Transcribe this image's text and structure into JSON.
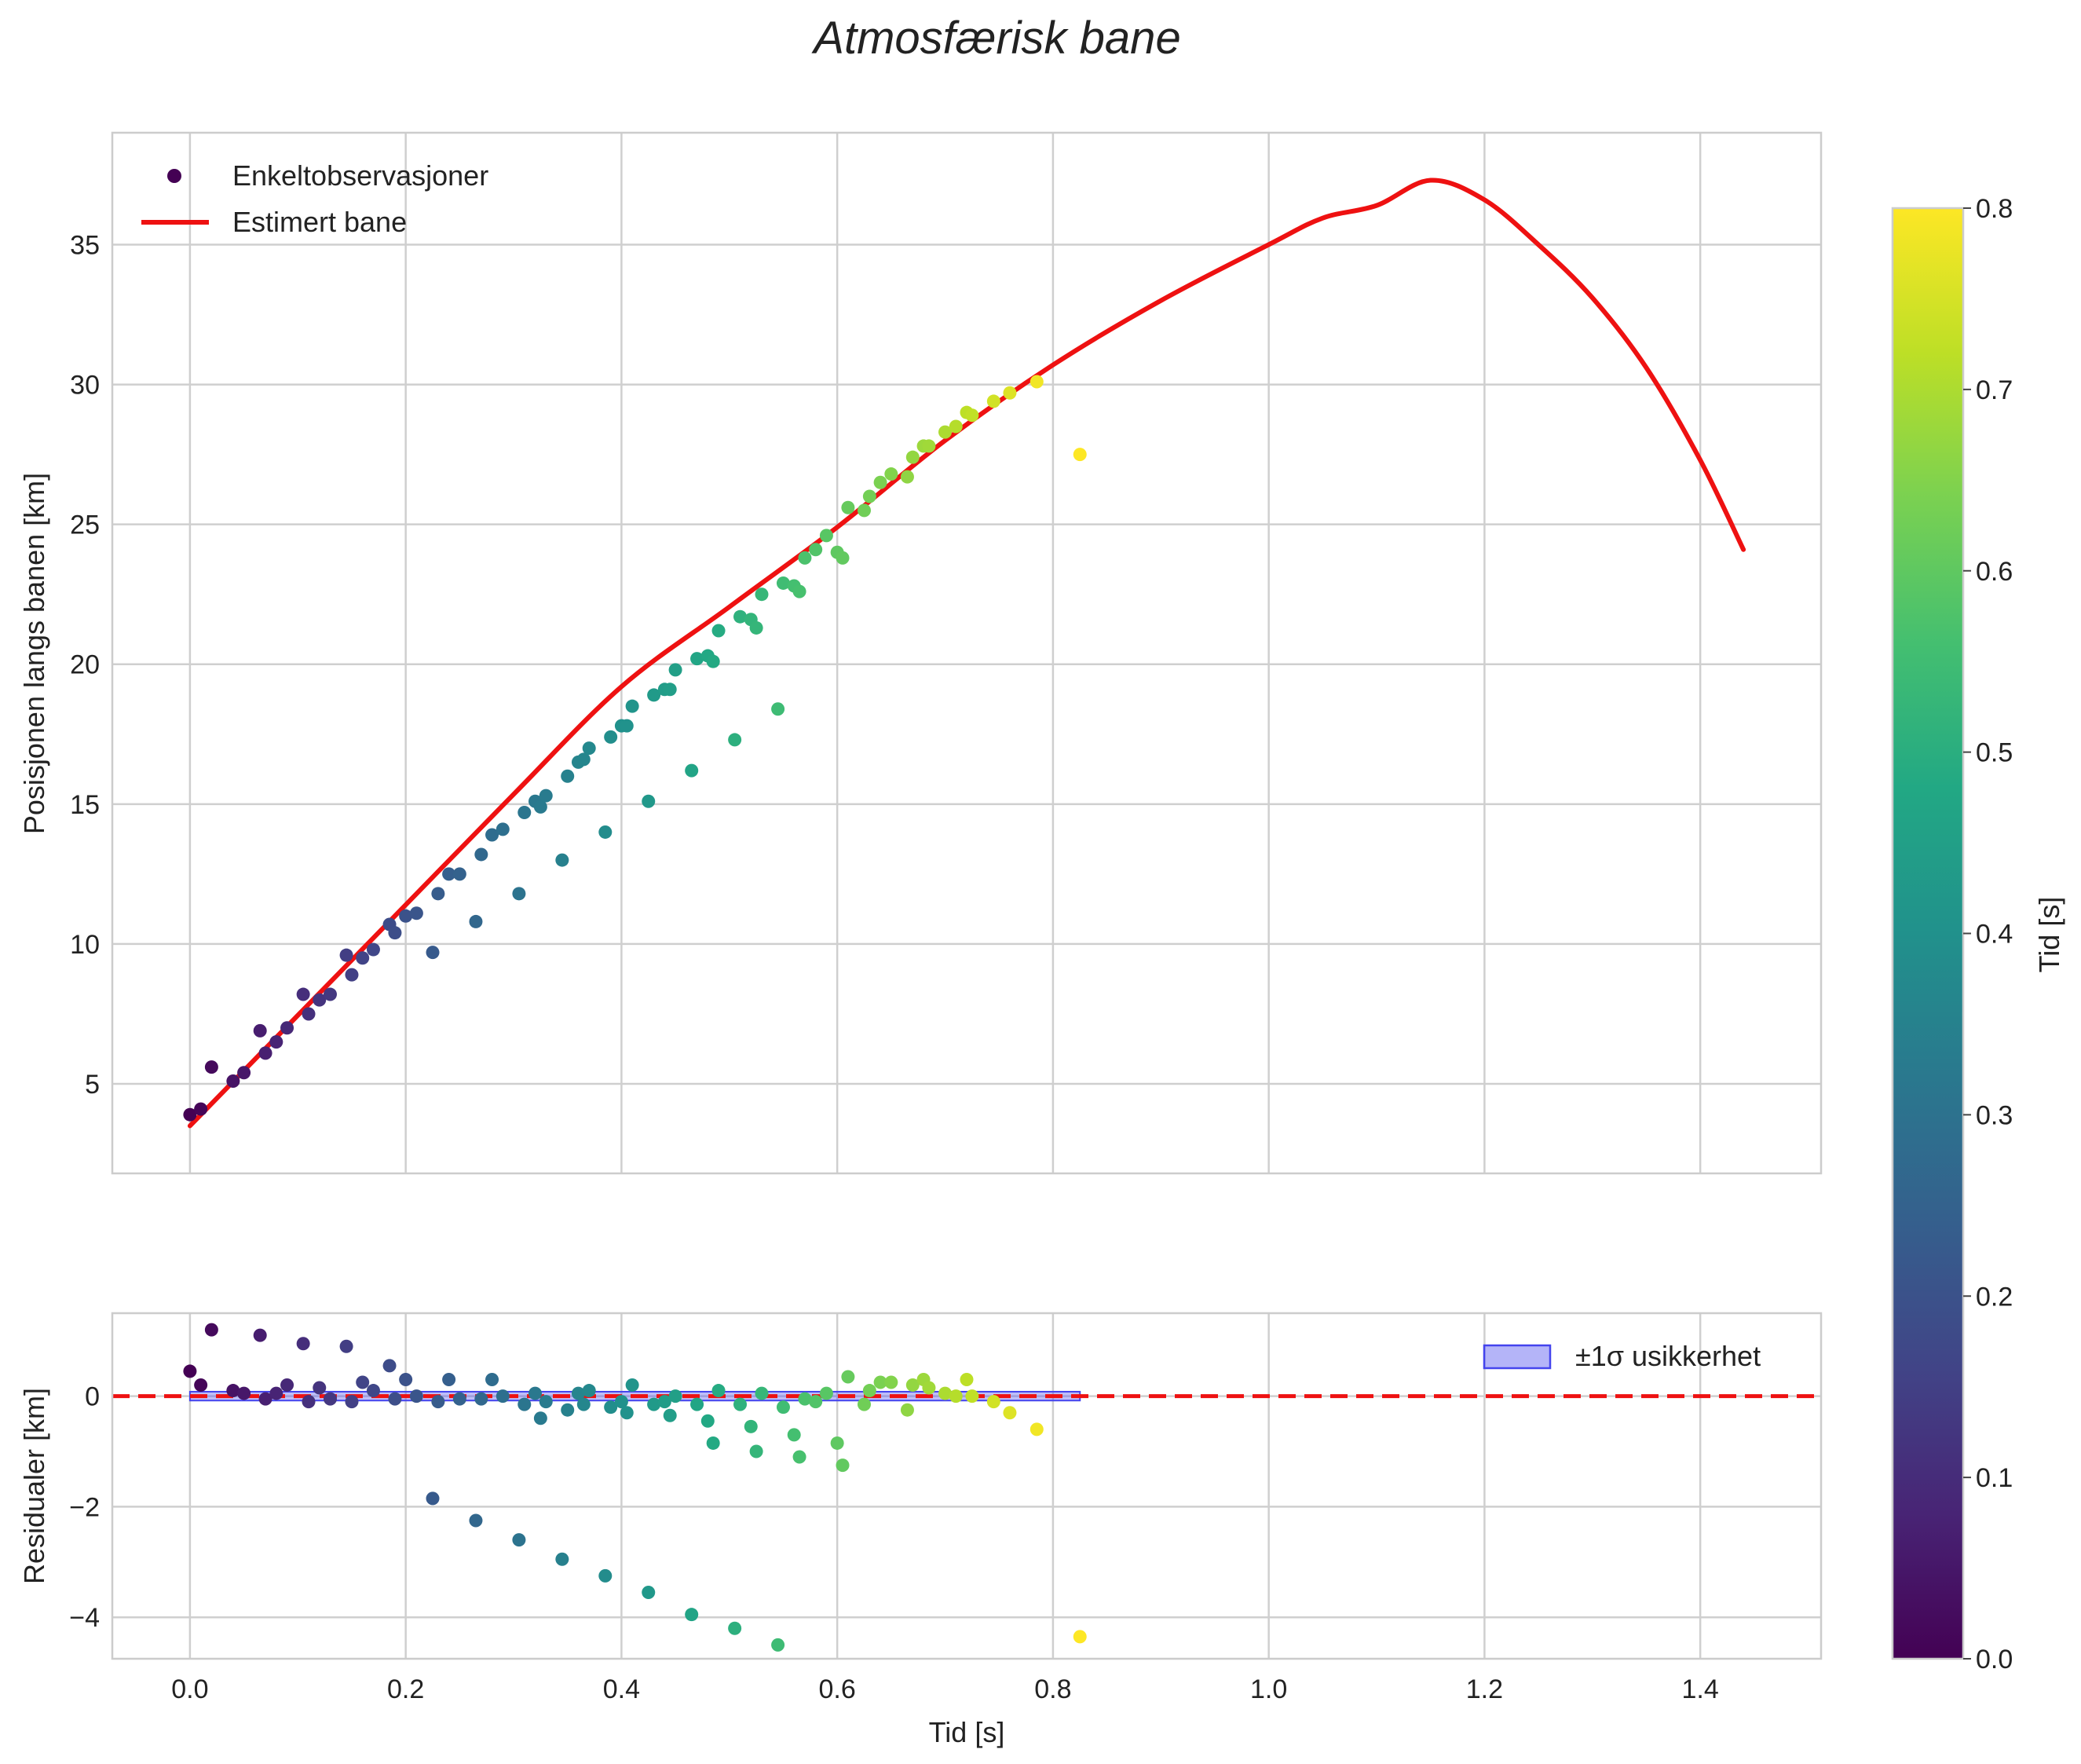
{
  "chart_data": {
    "type": "scatter",
    "title": "Atmosfærisk bane",
    "xlabel": "Tid [s]",
    "xlim": [
      -0.072,
      1.512
    ],
    "xticks": [
      0.0,
      0.2,
      0.4,
      0.6,
      0.8,
      1.0,
      1.2,
      1.4
    ],
    "xtick_labels": [
      "0.0",
      "0.2",
      "0.4",
      "0.6",
      "0.8",
      "1.0",
      "1.2",
      "1.4"
    ],
    "grid": true,
    "colorbar": {
      "label": "Tid [s]",
      "colormap": "viridis",
      "range": [
        0.0,
        0.8
      ],
      "ticks": [
        0.0,
        0.1,
        0.2,
        0.3,
        0.4,
        0.5,
        0.6,
        0.7,
        0.8
      ],
      "tick_labels": [
        "0.0",
        "0.1",
        "0.2",
        "0.3",
        "0.4",
        "0.5",
        "0.6",
        "0.7",
        "0.8"
      ]
    },
    "top_panel": {
      "ylabel": "Posisjonen langs banen [km]",
      "ylim": [
        1.8,
        39.0
      ],
      "yticks": [
        5,
        10,
        15,
        20,
        25,
        30,
        35
      ],
      "ytick_labels": [
        "5",
        "10",
        "15",
        "20",
        "25",
        "30",
        "35"
      ],
      "legend_position": "upper-left",
      "observations": {
        "name": "Enkeltobservasjoner",
        "points": [
          [
            0.0,
            3.9
          ],
          [
            0.01,
            4.1
          ],
          [
            0.02,
            5.6
          ],
          [
            0.04,
            5.1
          ],
          [
            0.05,
            5.4
          ],
          [
            0.065,
            6.9
          ],
          [
            0.07,
            6.1
          ],
          [
            0.08,
            6.5
          ],
          [
            0.09,
            7.0
          ],
          [
            0.105,
            8.2
          ],
          [
            0.11,
            7.5
          ],
          [
            0.12,
            8.0
          ],
          [
            0.13,
            8.2
          ],
          [
            0.145,
            9.6
          ],
          [
            0.15,
            8.9
          ],
          [
            0.16,
            9.5
          ],
          [
            0.17,
            9.8
          ],
          [
            0.185,
            10.7
          ],
          [
            0.19,
            10.4
          ],
          [
            0.2,
            11.0
          ],
          [
            0.21,
            11.1
          ],
          [
            0.225,
            9.7
          ],
          [
            0.23,
            11.8
          ],
          [
            0.24,
            12.5
          ],
          [
            0.25,
            12.5
          ],
          [
            0.265,
            10.8
          ],
          [
            0.27,
            13.2
          ],
          [
            0.28,
            13.9
          ],
          [
            0.29,
            14.1
          ],
          [
            0.305,
            11.8
          ],
          [
            0.31,
            14.7
          ],
          [
            0.32,
            15.1
          ],
          [
            0.325,
            14.9
          ],
          [
            0.33,
            15.3
          ],
          [
            0.345,
            13.0
          ],
          [
            0.35,
            16.0
          ],
          [
            0.36,
            16.5
          ],
          [
            0.365,
            16.6
          ],
          [
            0.37,
            17.0
          ],
          [
            0.385,
            14.0
          ],
          [
            0.39,
            17.4
          ],
          [
            0.4,
            17.8
          ],
          [
            0.405,
            17.8
          ],
          [
            0.41,
            18.5
          ],
          [
            0.425,
            15.1
          ],
          [
            0.43,
            18.9
          ],
          [
            0.44,
            19.1
          ],
          [
            0.445,
            19.1
          ],
          [
            0.45,
            19.8
          ],
          [
            0.465,
            16.2
          ],
          [
            0.47,
            20.2
          ],
          [
            0.48,
            20.3
          ],
          [
            0.485,
            20.1
          ],
          [
            0.49,
            21.2
          ],
          [
            0.505,
            17.3
          ],
          [
            0.51,
            21.7
          ],
          [
            0.52,
            21.6
          ],
          [
            0.525,
            21.3
          ],
          [
            0.53,
            22.5
          ],
          [
            0.545,
            18.4
          ],
          [
            0.55,
            22.9
          ],
          [
            0.56,
            22.8
          ],
          [
            0.565,
            22.6
          ],
          [
            0.57,
            23.8
          ],
          [
            0.58,
            24.1
          ],
          [
            0.59,
            24.6
          ],
          [
            0.6,
            24.0
          ],
          [
            0.605,
            23.8
          ],
          [
            0.61,
            25.6
          ],
          [
            0.625,
            25.5
          ],
          [
            0.63,
            26.0
          ],
          [
            0.64,
            26.5
          ],
          [
            0.65,
            26.8
          ],
          [
            0.665,
            26.7
          ],
          [
            0.67,
            27.4
          ],
          [
            0.68,
            27.8
          ],
          [
            0.685,
            27.8
          ],
          [
            0.7,
            28.3
          ],
          [
            0.71,
            28.5
          ],
          [
            0.72,
            29.0
          ],
          [
            0.725,
            28.9
          ],
          [
            0.745,
            29.4
          ],
          [
            0.76,
            29.7
          ],
          [
            0.785,
            30.1
          ],
          [
            0.825,
            27.5
          ]
        ]
      },
      "estimate": {
        "name": "Estimert bane",
        "color": "#ee1111",
        "points": [
          [
            0.0,
            3.5
          ],
          [
            0.1,
            7.45
          ],
          [
            0.2,
            11.4
          ],
          [
            0.3,
            15.35
          ],
          [
            0.4,
            19.2
          ],
          [
            0.5,
            22.05
          ],
          [
            0.6,
            24.9
          ],
          [
            0.7,
            28.0
          ],
          [
            0.8,
            30.7
          ],
          [
            0.9,
            33.0
          ],
          [
            1.0,
            35.0
          ],
          [
            1.05,
            35.95
          ],
          [
            1.1,
            36.4
          ],
          [
            1.15,
            37.3
          ],
          [
            1.2,
            36.6
          ],
          [
            1.25,
            35.0
          ],
          [
            1.3,
            33.1
          ],
          [
            1.35,
            30.6
          ],
          [
            1.4,
            27.3
          ],
          [
            1.44,
            24.1
          ]
        ]
      }
    },
    "bottom_panel": {
      "ylabel": "Residualer [km]",
      "ylim": [
        -4.75,
        1.5
      ],
      "yticks": [
        -4,
        -2,
        0
      ],
      "ytick_labels": [
        "−4",
        "−2",
        "0"
      ],
      "legend_position": "upper-right",
      "zero_line_color": "#ee1111",
      "uncertainty": {
        "name": "±1σ usikkerhet",
        "color": "#4444ee",
        "x": [
          0.0,
          0.825
        ],
        "sigma": 0.08
      },
      "residuals": [
        [
          0.0,
          0.45
        ],
        [
          0.01,
          0.2
        ],
        [
          0.02,
          1.2
        ],
        [
          0.04,
          0.1
        ],
        [
          0.05,
          0.05
        ],
        [
          0.065,
          1.1
        ],
        [
          0.07,
          -0.05
        ],
        [
          0.08,
          0.05
        ],
        [
          0.09,
          0.2
        ],
        [
          0.105,
          0.95
        ],
        [
          0.11,
          -0.1
        ],
        [
          0.12,
          0.15
        ],
        [
          0.13,
          -0.05
        ],
        [
          0.145,
          0.9
        ],
        [
          0.15,
          -0.1
        ],
        [
          0.16,
          0.25
        ],
        [
          0.17,
          0.1
        ],
        [
          0.185,
          0.55
        ],
        [
          0.19,
          -0.05
        ],
        [
          0.2,
          0.3
        ],
        [
          0.21,
          0.0
        ],
        [
          0.225,
          -1.85
        ],
        [
          0.23,
          -0.1
        ],
        [
          0.24,
          0.3
        ],
        [
          0.25,
          -0.05
        ],
        [
          0.265,
          -2.25
        ],
        [
          0.27,
          -0.05
        ],
        [
          0.28,
          0.3
        ],
        [
          0.29,
          0.0
        ],
        [
          0.305,
          -2.6
        ],
        [
          0.31,
          -0.15
        ],
        [
          0.32,
          0.05
        ],
        [
          0.325,
          -0.4
        ],
        [
          0.33,
          -0.1
        ],
        [
          0.345,
          -2.95
        ],
        [
          0.35,
          -0.25
        ],
        [
          0.36,
          0.05
        ],
        [
          0.365,
          -0.15
        ],
        [
          0.37,
          0.1
        ],
        [
          0.385,
          -3.25
        ],
        [
          0.39,
          -0.2
        ],
        [
          0.4,
          -0.1
        ],
        [
          0.405,
          -0.3
        ],
        [
          0.41,
          0.2
        ],
        [
          0.425,
          -3.55
        ],
        [
          0.43,
          -0.15
        ],
        [
          0.44,
          -0.1
        ],
        [
          0.445,
          -0.35
        ],
        [
          0.45,
          0.0
        ],
        [
          0.465,
          -3.95
        ],
        [
          0.47,
          -0.15
        ],
        [
          0.48,
          -0.45
        ],
        [
          0.485,
          -0.85
        ],
        [
          0.49,
          0.1
        ],
        [
          0.505,
          -4.2
        ],
        [
          0.51,
          -0.15
        ],
        [
          0.52,
          -0.55
        ],
        [
          0.525,
          -1.0
        ],
        [
          0.53,
          0.05
        ],
        [
          0.545,
          -4.5
        ],
        [
          0.55,
          -0.2
        ],
        [
          0.56,
          -0.7
        ],
        [
          0.565,
          -1.1
        ],
        [
          0.57,
          -0.05
        ],
        [
          0.58,
          -0.1
        ],
        [
          0.59,
          0.05
        ],
        [
          0.6,
          -0.85
        ],
        [
          0.605,
          -1.25
        ],
        [
          0.61,
          0.35
        ],
        [
          0.625,
          -0.15
        ],
        [
          0.63,
          0.1
        ],
        [
          0.64,
          0.25
        ],
        [
          0.65,
          0.25
        ],
        [
          0.665,
          -0.25
        ],
        [
          0.67,
          0.2
        ],
        [
          0.68,
          0.3
        ],
        [
          0.685,
          0.15
        ],
        [
          0.7,
          0.05
        ],
        [
          0.71,
          0.0
        ],
        [
          0.72,
          0.3
        ],
        [
          0.725,
          0.0
        ],
        [
          0.745,
          -0.1
        ],
        [
          0.76,
          -0.3
        ],
        [
          0.785,
          -0.6
        ],
        [
          0.825,
          -4.35
        ]
      ]
    }
  }
}
